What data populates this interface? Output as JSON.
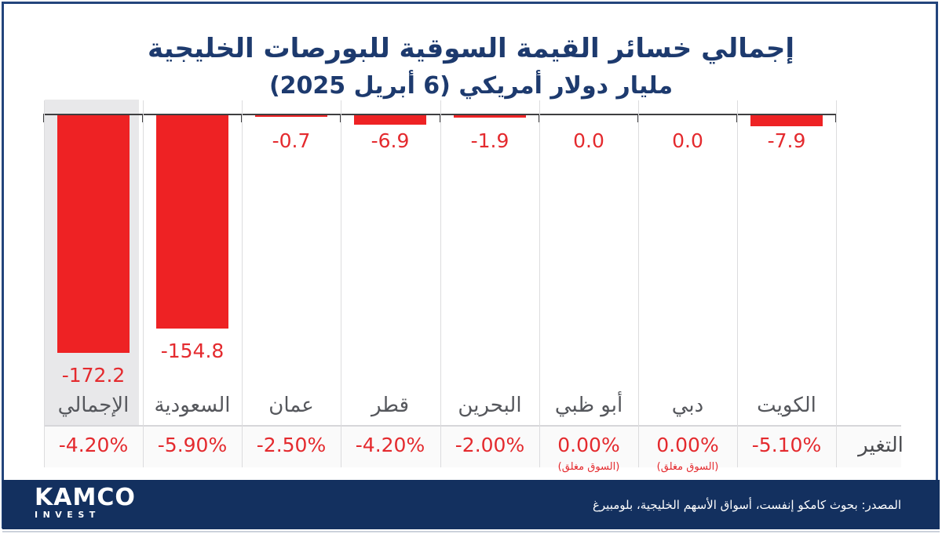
{
  "page": {
    "title_line1": "إجمالي خسائر القيمة السوقية للبورصات الخليجية",
    "title_line2": "مليار دولار أمريكي (6 أبريل 2025)",
    "change_row_label": "التغير",
    "source_text": "المصدر: بحوث كامكو إنفست، أسواق الأسهم الخليجية، بلومبيرغ",
    "logo": {
      "main": "KAMCO",
      "sub": "INVEST"
    }
  },
  "colors": {
    "navy": "#1d3a6e",
    "footer_navy": "#13305f",
    "border_navy": "#23457c",
    "bar_red": "#ee2224",
    "text_red": "#e42a2e",
    "highlight_gray": "#e8e8ea"
  },
  "chart_data": {
    "type": "bar",
    "title": "إجمالي خسائر القيمة السوقية للبورصات الخليجية",
    "subtitle": "مليار دولار أمريكي (6 أبريل 2025)",
    "unit": "مليار دولار أمريكي",
    "date": "6 أبريل 2025",
    "orientation": "vertical-bars-descending-from-zero-baseline",
    "grid": false,
    "legend": "none",
    "ylim": [
      -180,
      0
    ],
    "categories": [
      "الإجمالي",
      "السعودية",
      "عمان",
      "قطر",
      "البحرين",
      "أبو ظبي",
      "دبي",
      "الكويت"
    ],
    "categories_en": [
      "total",
      "saudi-arabia",
      "oman",
      "qatar",
      "bahrain",
      "abu-dhabi",
      "dubai",
      "kuwait"
    ],
    "series": [
      {
        "name": "خسائر القيمة السوقية (مليار دولار أمريكي)",
        "values": [
          -172.2,
          -154.8,
          -0.7,
          -6.9,
          -1.9,
          0.0,
          0.0,
          -7.9
        ]
      }
    ],
    "value_labels": [
      "-172.2",
      "-154.8",
      "-0.7",
      "-6.9",
      "-1.9",
      "0.0",
      "0.0",
      "-7.9"
    ],
    "pct_change": [
      "-4.20%",
      "-5.90%",
      "-2.50%",
      "-4.20%",
      "-2.00%",
      "0.00%",
      "0.00%",
      "-5.10%"
    ],
    "market_closed": [
      false,
      false,
      false,
      false,
      false,
      true,
      true,
      false
    ],
    "closed_note": "(السوق مغلق)",
    "highlight_category": "الإجمالي"
  }
}
